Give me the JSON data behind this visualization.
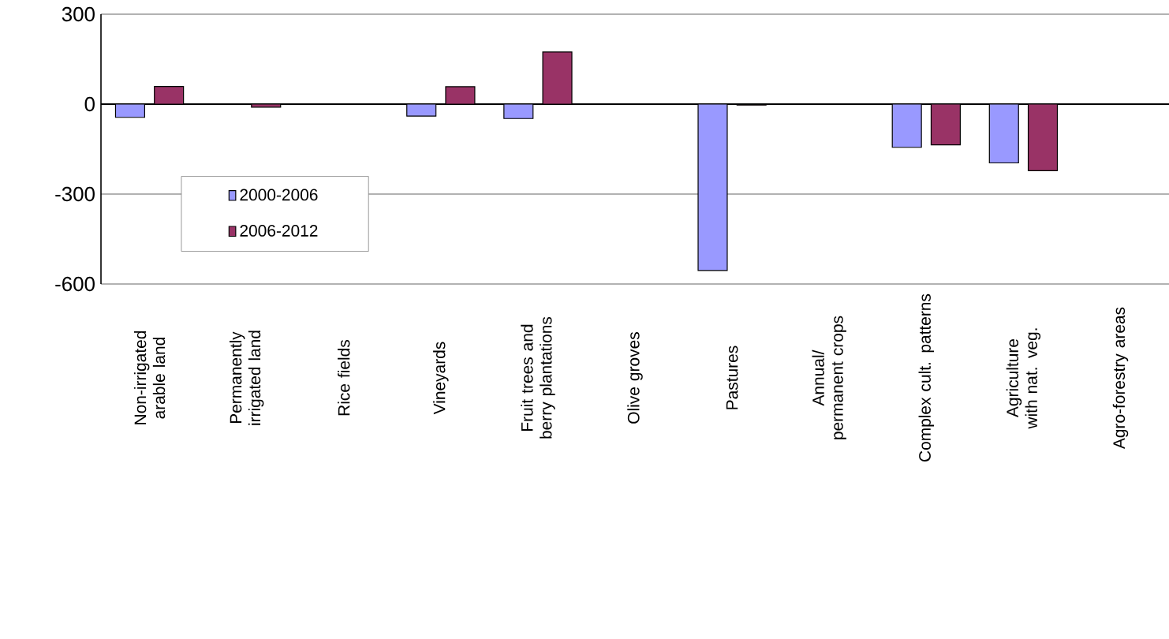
{
  "chart_data": {
    "type": "bar",
    "categories": [
      "Non-irrigated arable land",
      "Permanently irrigated land",
      "Rice fields",
      "Vineyards",
      "Fruit trees and berry plantations",
      "Olive groves",
      "Pastures",
      "Annual/ permanent crops",
      "Complex cult. patterns",
      "Agriculture with nat. veg.",
      "Agro-forestry areas"
    ],
    "series": [
      {
        "name": "2000-2006",
        "color": "#9999ff",
        "values": [
          -44,
          null,
          null,
          -40,
          -48,
          null,
          -555,
          null,
          -144,
          -196,
          null
        ]
      },
      {
        "name": "2006-2012",
        "color": "#993366",
        "values": [
          59,
          -10,
          null,
          58,
          174,
          null,
          -3,
          null,
          -136,
          -222,
          null
        ]
      }
    ],
    "ylim": [
      -600,
      300
    ],
    "yticks": [
      -600,
      -300,
      0,
      300
    ],
    "grid": "y",
    "legend": "left"
  }
}
